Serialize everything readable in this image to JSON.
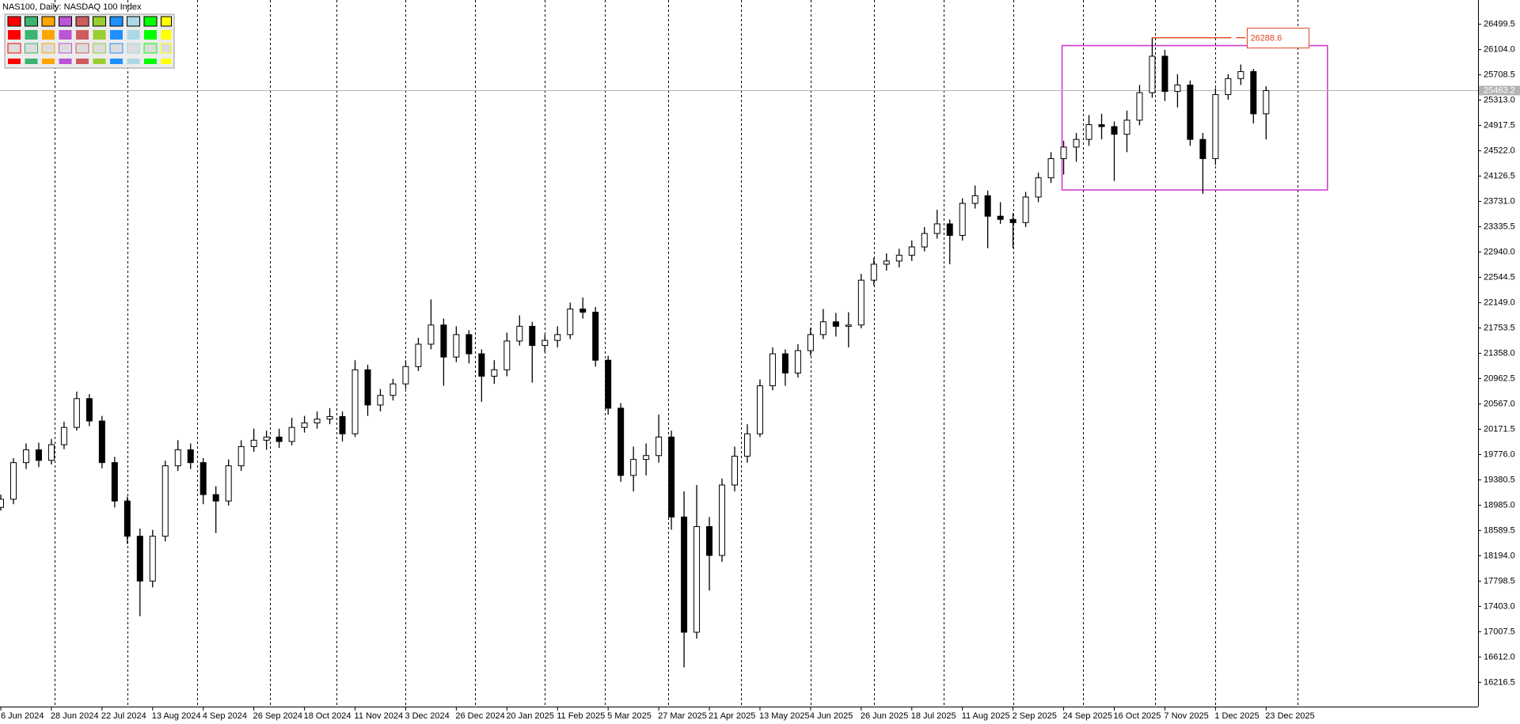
{
  "chart_data": {
    "type": "candlestick",
    "title": "NAS100, Daily:  NASDAQ 100 Index",
    "x": [
      0,
      4,
      8,
      12,
      16,
      20,
      24,
      28,
      32,
      36,
      40,
      44,
      48,
      52,
      56,
      60,
      64,
      68,
      72,
      76,
      80,
      84,
      88,
      92,
      96,
      100,
      104,
      108,
      112,
      116,
      120,
      124,
      128,
      132,
      136,
      140,
      144,
      148,
      152,
      156,
      160,
      164,
      168,
      172,
      176,
      180,
      184,
      188,
      192,
      196,
      200,
      204,
      208,
      212,
      216,
      220,
      224,
      228,
      232,
      236,
      240,
      244,
      248,
      252,
      256,
      260,
      264,
      268,
      272,
      276,
      280,
      284,
      288,
      292,
      296,
      300,
      304,
      308,
      312,
      316,
      320,
      324,
      328,
      332,
      336,
      340,
      344,
      348,
      352,
      356,
      360,
      364,
      368,
      372,
      376,
      380,
      384,
      388,
      392,
      396,
      400
    ],
    "open": [
      18950,
      19078,
      19650,
      19850,
      19685,
      19930,
      20200,
      20650,
      20300,
      19650,
      19050,
      18500,
      17800,
      18500,
      19600,
      19850,
      19650,
      19150,
      19050,
      19600,
      19900,
      20000,
      20050,
      19980,
      20200,
      20270,
      20330,
      20370,
      20100,
      21100,
      20550,
      20700,
      20880,
      21150,
      21500,
      21800,
      21300,
      21650,
      21350,
      21000,
      21100,
      21550,
      21780,
      21480,
      21560,
      21650,
      22050,
      22000,
      21250,
      20500,
      19450,
      19700,
      19760,
      20050,
      18800,
      17000,
      18650,
      18200,
      19300,
      19750,
      20100,
      20850,
      21350,
      21050,
      21400,
      21650,
      21850,
      21780,
      21800,
      22500,
      22750,
      22800,
      22890,
      23020,
      23230,
      23380,
      23200,
      23700,
      23820,
      23500,
      23450,
      23400,
      23800,
      24100,
      24400,
      24580,
      24700,
      24930,
      24900,
      24780,
      25000,
      25430,
      26000,
      25450,
      25550,
      24700,
      24400,
      25400,
      25650,
      25760,
      25100
    ],
    "high": [
      19150,
      19720,
      19950,
      19960,
      20020,
      20290,
      20760,
      20720,
      20380,
      19740,
      19120,
      18620,
      18600,
      19680,
      20000,
      19950,
      19720,
      19280,
      19700,
      20000,
      20180,
      20150,
      20180,
      20350,
      20380,
      20450,
      20500,
      20450,
      21250,
      21180,
      20800,
      20960,
      21250,
      21600,
      22200,
      21900,
      21780,
      21720,
      21420,
      21250,
      21680,
      21950,
      21850,
      21650,
      21780,
      22150,
      22230,
      22080,
      21320,
      20580,
      19900,
      19950,
      20400,
      20150,
      19200,
      19300,
      18800,
      19400,
      19900,
      20250,
      20950,
      21450,
      21420,
      21500,
      21760,
      22050,
      21990,
      22000,
      22600,
      22850,
      22920,
      22990,
      23120,
      23330,
      23600,
      23450,
      23780,
      23980,
      23900,
      23720,
      23550,
      23880,
      24180,
      24500,
      24680,
      24800,
      25080,
      25100,
      24980,
      25150,
      25550,
      26288.6,
      26100,
      25720,
      25620,
      24800,
      25500,
      25720,
      25870,
      25800,
      25530
    ],
    "low": [
      18900,
      19000,
      19550,
      19580,
      19620,
      19860,
      20150,
      20220,
      19560,
      18950,
      18380,
      17250,
      17700,
      18420,
      19520,
      19550,
      19000,
      18550,
      18980,
      19520,
      19820,
      19850,
      19880,
      19920,
      20120,
      20180,
      20250,
      19980,
      20050,
      20380,
      20450,
      20620,
      20800,
      21080,
      21420,
      20850,
      21220,
      21200,
      20600,
      20880,
      21000,
      21480,
      20900,
      21380,
      21450,
      21580,
      21900,
      21150,
      20400,
      19350,
      19200,
      19450,
      19650,
      18600,
      16450,
      16900,
      17650,
      18100,
      19200,
      19650,
      20050,
      20780,
      20850,
      20980,
      21320,
      21580,
      21620,
      21450,
      21750,
      22420,
      22650,
      22700,
      22800,
      22950,
      23150,
      22750,
      23120,
      23620,
      23000,
      23380,
      23000,
      23330,
      23720,
      24020,
      24150,
      24350,
      24600,
      24700,
      24050,
      24500,
      24920,
      25350,
      25300,
      25200,
      24600,
      23850,
      24300,
      25320,
      25550,
      24950,
      24700
    ],
    "close": [
      19078,
      19650,
      19850,
      19685,
      19930,
      20200,
      20650,
      20300,
      19650,
      19050,
      18500,
      17800,
      18500,
      19600,
      19850,
      19650,
      19150,
      19050,
      19600,
      19900,
      20000,
      20050,
      19980,
      20200,
      20270,
      20330,
      20370,
      20100,
      21100,
      20550,
      20700,
      20880,
      21150,
      21500,
      21800,
      21300,
      21650,
      21350,
      21000,
      21100,
      21550,
      21780,
      21480,
      21560,
      21650,
      22050,
      22000,
      21250,
      20500,
      19450,
      19700,
      19760,
      20050,
      18800,
      17000,
      18650,
      18200,
      19300,
      19750,
      20100,
      20850,
      21350,
      21050,
      21400,
      21650,
      21850,
      21780,
      21800,
      22500,
      22750,
      22800,
      22890,
      23020,
      23230,
      23380,
      23200,
      23700,
      23820,
      23500,
      23450,
      23400,
      23800,
      24100,
      24400,
      24580,
      24700,
      24930,
      24900,
      24780,
      25000,
      25430,
      26000,
      25450,
      25550,
      24700,
      24400,
      25400,
      25650,
      25760,
      25100,
      25463.2
    ],
    "up_color": "#ffffff",
    "down_color": "#000000",
    "outline_color": "#000000",
    "xlim": [
      0,
      467
    ],
    "ylim": [
      15838,
      26878
    ],
    "xticks": [
      {
        "value": 0,
        "label": "6 Jun 2024"
      },
      {
        "value": 16,
        "label": "28 Jun 2024"
      },
      {
        "value": 32,
        "label": "22 Jul 2024"
      },
      {
        "value": 48,
        "label": "13 Aug 2024"
      },
      {
        "value": 64,
        "label": "4 Sep 2024"
      },
      {
        "value": 80,
        "label": "26 Sep 2024"
      },
      {
        "value": 96,
        "label": "18 Oct 2024"
      },
      {
        "value": 112,
        "label": "11 Nov 2024"
      },
      {
        "value": 128,
        "label": "3 Dec 2024"
      },
      {
        "value": 144,
        "label": "26 Dec 2024"
      },
      {
        "value": 160,
        "label": "20 Jan 2025"
      },
      {
        "value": 176,
        "label": "11 Feb 2025"
      },
      {
        "value": 192,
        "label": "5 Mar 2025"
      },
      {
        "value": 208,
        "label": "27 Mar 2025"
      },
      {
        "value": 224,
        "label": "21 Apr 2025"
      },
      {
        "value": 240,
        "label": "13 May 2025"
      },
      {
        "value": 256,
        "label": "4 Jun 2025"
      },
      {
        "value": 272,
        "label": "26 Jun 2025"
      },
      {
        "value": 288,
        "label": "18 Jul 2025"
      },
      {
        "value": 304,
        "label": "11 Aug 2025"
      },
      {
        "value": 320,
        "label": "2 Sep 2025"
      },
      {
        "value": 336,
        "label": "24 Sep 2025"
      },
      {
        "value": 352,
        "label": "16 Oct 2025"
      },
      {
        "value": 368,
        "label": "7 Nov 2025"
      },
      {
        "value": 384,
        "label": "1 Dec 2025"
      },
      {
        "value": 400,
        "label": "23 Dec 2025"
      }
    ],
    "yticks": [
      16216.5,
      {
        "value": 16612,
        "label": "16612.0"
      },
      17007.5,
      {
        "value": 17403,
        "label": "17403.0"
      },
      17798.5,
      {
        "value": 18194,
        "label": "18194.0"
      },
      18589.5,
      {
        "value": 18985,
        "label": "18985.0"
      },
      19380.5,
      {
        "value": 19776,
        "label": "19776.0"
      },
      20171.5,
      {
        "value": 20567,
        "label": "20567.0"
      },
      20962.5,
      {
        "value": 21358,
        "label": "21358.0"
      },
      21753.5,
      {
        "value": 22149,
        "label": "22149.0"
      },
      22544.5,
      {
        "value": 22940,
        "label": "22940.0"
      },
      23335.5,
      {
        "value": 23731,
        "label": "23731.0"
      },
      24126.5,
      {
        "value": 24522,
        "label": "24522.0"
      },
      24917.5,
      {
        "value": 25313,
        "label": "25313.0"
      },
      25708.5,
      {
        "value": 26104,
        "label": "26104.0"
      },
      26499.5
    ],
    "separators": [
      17,
      40,
      62,
      85,
      106,
      128,
      150,
      172,
      191,
      211,
      234,
      256,
      276,
      298,
      320,
      342,
      365,
      384,
      410
    ],
    "rectangle": {
      "x": [
        335.5,
        419.4
      ],
      "y": [
        23910,
        26166
      ],
      "color": "#cc33cc"
    },
    "peak_label_color": "#e0401c",
    "current_price_color": "#b4b4b4"
  }
}
